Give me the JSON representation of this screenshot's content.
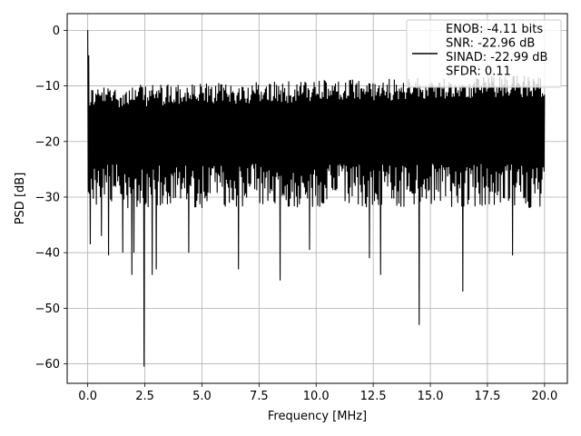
{
  "chart_data": {
    "type": "line",
    "title": "",
    "xlabel": "Frequency [MHz]",
    "ylabel": "PSD [dB]",
    "xlim": [
      -0.9,
      21.0
    ],
    "ylim": [
      -63.5,
      3.0
    ],
    "xticks": [
      0.0,
      2.5,
      5.0,
      7.5,
      10.0,
      12.5,
      15.0,
      17.5,
      20.0
    ],
    "xtick_labels": [
      "0.0",
      "2.5",
      "5.0",
      "7.5",
      "10.0",
      "12.5",
      "15.0",
      "17.5",
      "20.0"
    ],
    "yticks": [
      0,
      -10,
      -20,
      -30,
      -40,
      -50,
      -60
    ],
    "ytick_labels": [
      "0",
      "−10",
      "−20",
      "−30",
      "−40",
      "−50",
      "−60"
    ],
    "grid": true,
    "legend_position": "upper-right",
    "legend": [
      "ENOB: -4.11 bits",
      "SNR: -22.96 dB",
      "SINAD: -22.99 dB",
      "SFDR: 0.11"
    ],
    "series": [
      {
        "color": "#000000",
        "x_start": 0.0,
        "x_end": 20.0,
        "noise_floor_mean_db": -20,
        "noise_upper_envelope_db": [
          -8,
          -6
        ],
        "peaks": [
          {
            "x": 0.0,
            "y": 0.0
          },
          {
            "x": 0.05,
            "y": -4.5
          }
        ],
        "notches": [
          {
            "x": 0.1,
            "y": -38.5
          },
          {
            "x": 0.6,
            "y": -37
          },
          {
            "x": 0.9,
            "y": -40.5
          },
          {
            "x": 1.5,
            "y": -40
          },
          {
            "x": 1.9,
            "y": -44
          },
          {
            "x": 2.0,
            "y": -40
          },
          {
            "x": 2.45,
            "y": -60.5
          },
          {
            "x": 2.8,
            "y": -44
          },
          {
            "x": 3.0,
            "y": -43
          },
          {
            "x": 4.4,
            "y": -40
          },
          {
            "x": 6.6,
            "y": -43
          },
          {
            "x": 8.4,
            "y": -45
          },
          {
            "x": 9.7,
            "y": -39.5
          },
          {
            "x": 12.3,
            "y": -41
          },
          {
            "x": 12.8,
            "y": -44
          },
          {
            "x": 14.5,
            "y": -53
          },
          {
            "x": 16.4,
            "y": -47
          },
          {
            "x": 18.6,
            "y": -40.5
          }
        ]
      }
    ]
  }
}
